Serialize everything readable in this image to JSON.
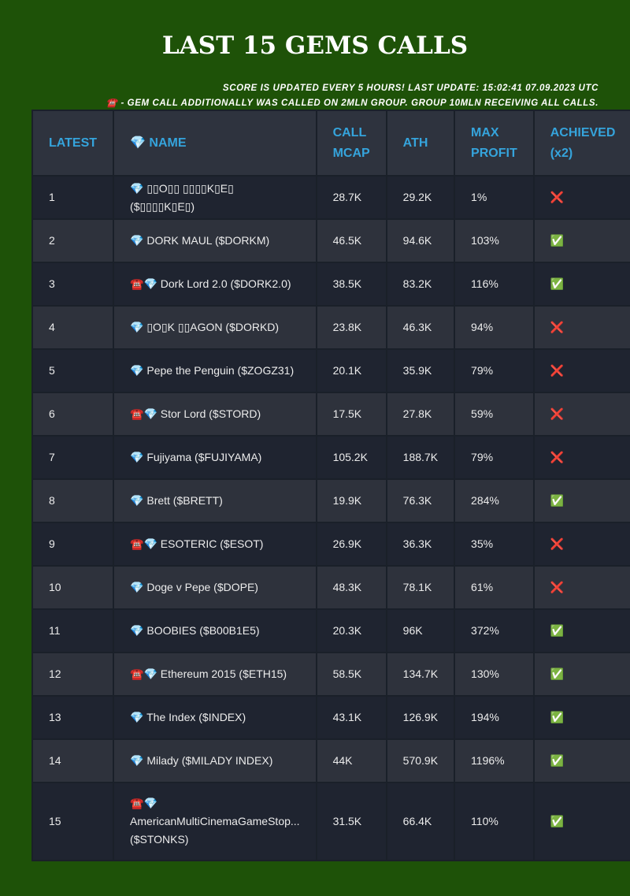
{
  "header": {
    "title": "LAST 15 GEMS CALLS",
    "notes": [
      "SCORE IS UPDATED EVERY 5 HOURS! LAST UPDATE: 15:02:41 07.09.2023 UTC",
      "☎️ - GEM CALL ADDITIONALLY WAS CALLED ON 2MLN GROUP. GROUP 10MLN RECEIVING ALL CALLS."
    ]
  },
  "table": {
    "columns": [
      "LATEST",
      "💎 NAME",
      "CALL MCAP",
      "ATH",
      "MAX PROFIT",
      "ACHIEVED (x2)"
    ],
    "rows": [
      [
        "1",
        "💎 ▯▯O▯▯ ▯▯▯▯K▯E▯ ($▯▯▯▯K▯E▯)",
        "28.7K",
        "29.2K",
        "1%",
        "❌"
      ],
      [
        "2",
        "💎 DORK MAUL ($DORKM)",
        "46.5K",
        "94.6K",
        "103%",
        "✅"
      ],
      [
        "3",
        "☎️💎 Dork Lord 2.0 ($DORK2.0)",
        "38.5K",
        "83.2K",
        "116%",
        "✅"
      ],
      [
        "4",
        "💎 ▯O▯K ▯▯AGON ($DORKD)",
        "23.8K",
        "46.3K",
        "94%",
        "❌"
      ],
      [
        "5",
        "💎 Pepe the Penguin ($ZOGZ31)",
        "20.1K",
        "35.9K",
        "79%",
        "❌"
      ],
      [
        "6",
        "☎️💎 Stor Lord ($STORD)",
        "17.5K",
        "27.8K",
        "59%",
        "❌"
      ],
      [
        "7",
        "💎 Fujiyama ($FUJIYAMA)",
        "105.2K",
        "188.7K",
        "79%",
        "❌"
      ],
      [
        "8",
        "💎 Brett ($BRETT)",
        "19.9K",
        "76.3K",
        "284%",
        "✅"
      ],
      [
        "9",
        "☎️💎 ESOTERIC ($ESOT)",
        "26.9K",
        "36.3K",
        "35%",
        "❌"
      ],
      [
        "10",
        "💎 Doge v Pepe ($DOPE)",
        "48.3K",
        "78.1K",
        "61%",
        "❌"
      ],
      [
        "11",
        "💎 BOOBIES ($B00B1E5)",
        "20.3K",
        "96K",
        "372%",
        "✅"
      ],
      [
        "12",
        "☎️💎 Ethereum 2015 ($ETH15)",
        "58.5K",
        "134.7K",
        "130%",
        "✅"
      ],
      [
        "13",
        "💎 The Index ($INDEX)",
        "43.1K",
        "126.9K",
        "194%",
        "✅"
      ],
      [
        "14",
        "💎 Milady ($MILADY INDEX)",
        "44K",
        "570.9K",
        "1196%",
        "✅"
      ],
      [
        "15",
        "☎️💎 AmericanMultiCinemaGameStop... ($STONKS)",
        "31.5K",
        "66.4K",
        "110%",
        "✅"
      ]
    ]
  }
}
